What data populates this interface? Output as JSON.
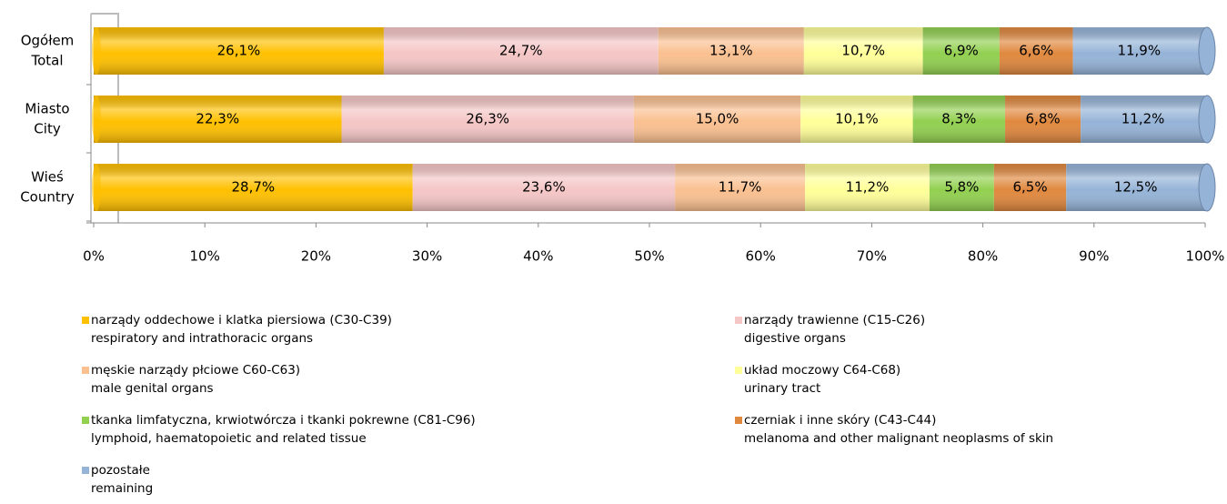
{
  "chart_data": {
    "type": "stacked_bar_horizontal_100",
    "categories": [
      [
        "Ogółem",
        "Total"
      ],
      [
        "Miasto",
        "City"
      ],
      [
        "Wieś",
        "Country"
      ]
    ],
    "series": [
      {
        "name": [
          "narządy oddechowe i klatka piersiowa (C30-C39)",
          "respiratory and intrathoracic organs"
        ],
        "color": "#FFC000",
        "values": [
          26.1,
          22.3,
          28.7
        ],
        "value_labels": [
          "26,1%",
          "22,3%",
          "28,7%"
        ]
      },
      {
        "name": [
          "narządy trawienne (C15-C26)",
          "digestive organs"
        ],
        "color": "#F5C6C6",
        "values": [
          24.7,
          26.3,
          23.6
        ],
        "value_labels": [
          "24,7%",
          "26,3%",
          "23,6%"
        ]
      },
      {
        "name": [
          "męskie narządy płciowe C60-C63)",
          " male genital organs"
        ],
        "color": "#FAC090",
        "values": [
          13.1,
          15.0,
          11.7
        ],
        "value_labels": [
          "13,1%",
          "15,0%",
          "11,7%"
        ]
      },
      {
        "name": [
          "układ moczowy C64-C68)",
          "urinary tract"
        ],
        "color": "#FFFF99",
        "values": [
          10.7,
          10.1,
          11.2
        ],
        "value_labels": [
          "10,7%",
          "10,1%",
          "11,2%"
        ]
      },
      {
        "name": [
          "tkanka limfatyczna, krwiotwórcza i tkanki pokrewne (C81-C96)",
          "lymphoid, haematopoietic and related tissue"
        ],
        "color": "#92D050",
        "values": [
          6.9,
          8.3,
          5.8
        ],
        "value_labels": [
          "6,9%",
          "8,3%",
          "5,8%"
        ]
      },
      {
        "name": [
          "czerniak i inne skóry (C43-C44)",
          "melanoma and other malignant neoplasms of skin"
        ],
        "color": "#E0883E",
        "values": [
          6.6,
          6.8,
          6.5
        ],
        "value_labels": [
          "6,6%",
          "6,8%",
          "6,5%"
        ]
      },
      {
        "name": [
          "pozostałe",
          "remaining"
        ],
        "color": "#95B3D7",
        "values": [
          11.9,
          11.2,
          12.5
        ],
        "value_labels": [
          "11,9%",
          "11,2%",
          "12,5%"
        ]
      }
    ],
    "xlim": [
      0,
      100
    ],
    "xticks": [
      {
        "value": 0,
        "label": "0%"
      },
      {
        "value": 10,
        "label": "10%"
      },
      {
        "value": 20,
        "label": "20%"
      },
      {
        "value": 30,
        "label": "30%"
      },
      {
        "value": 40,
        "label": "40%"
      },
      {
        "value": 50,
        "label": "50%"
      },
      {
        "value": 60,
        "label": "60%"
      },
      {
        "value": 70,
        "label": "70%"
      },
      {
        "value": 80,
        "label": "80%"
      },
      {
        "value": 90,
        "label": "90%"
      },
      {
        "value": 100,
        "label": "100%"
      }
    ]
  }
}
